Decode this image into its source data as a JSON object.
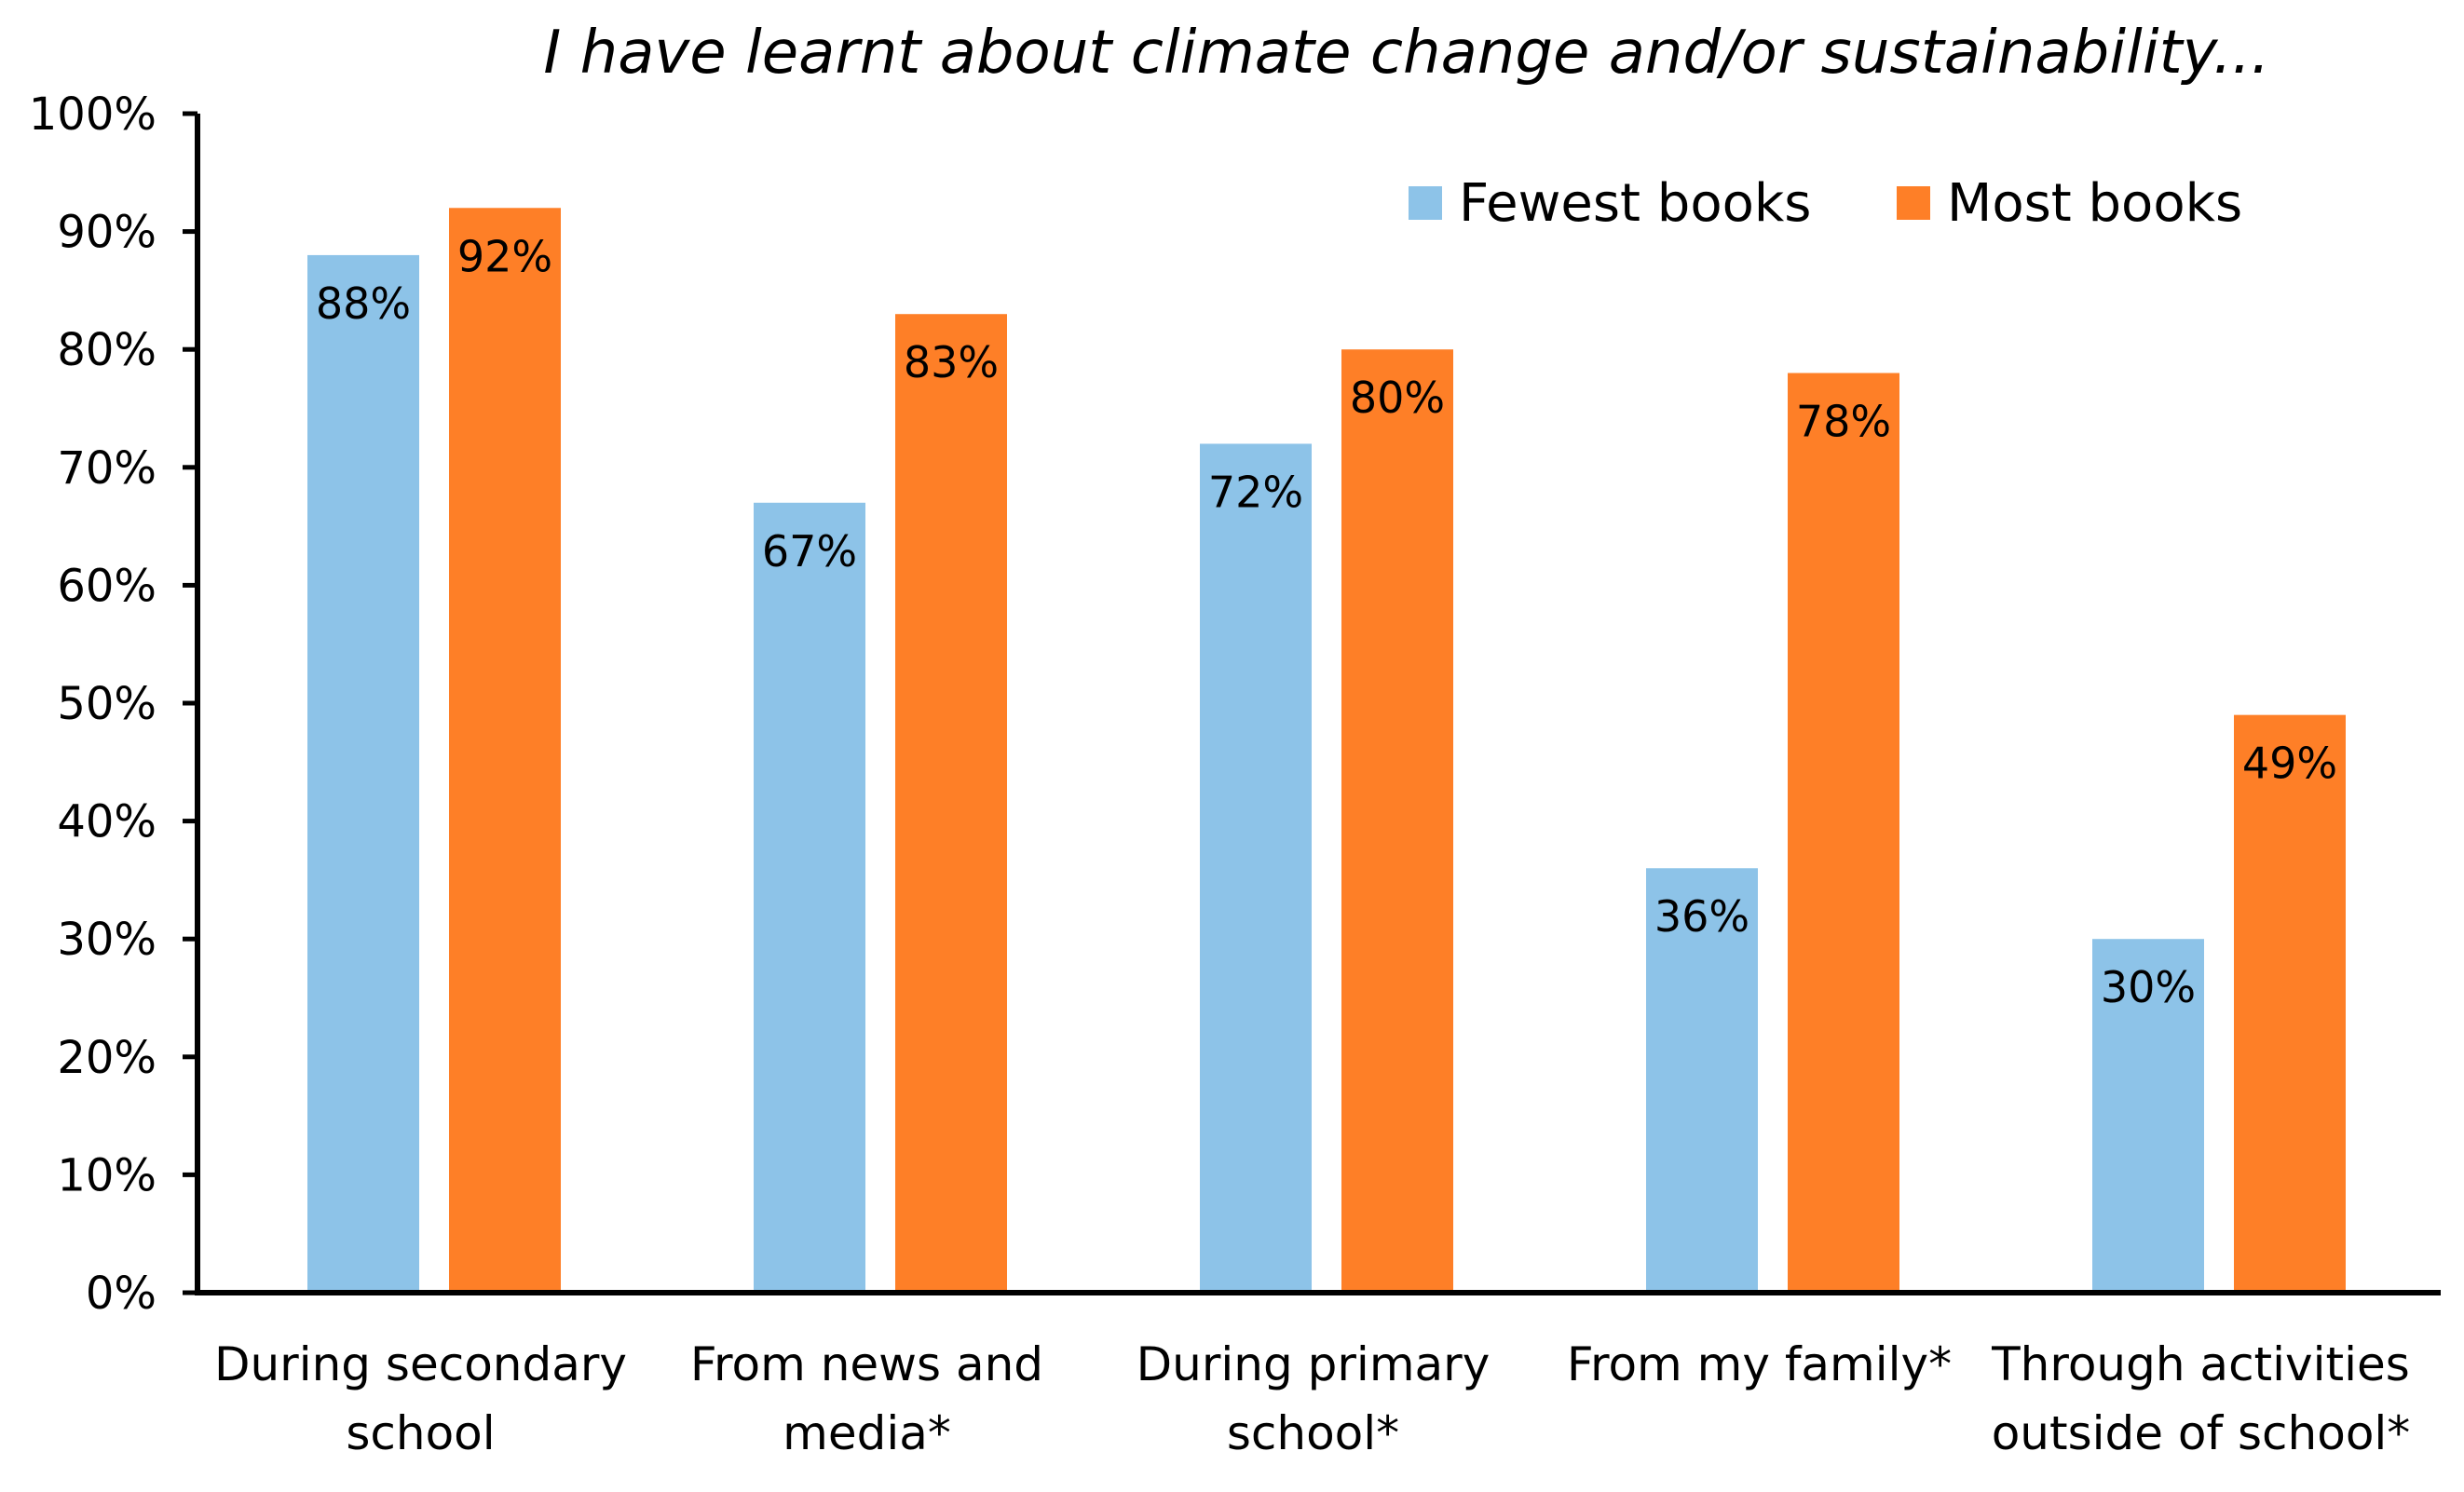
{
  "chart_data": {
    "type": "bar",
    "title": "I have learnt about climate change and/or sustainability...",
    "xlabel": "",
    "ylabel": "",
    "ylim": [
      0,
      100
    ],
    "yticks": [
      "0%",
      "10%",
      "20%",
      "30%",
      "40%",
      "50%",
      "60%",
      "70%",
      "80%",
      "90%",
      "100%"
    ],
    "grid": false,
    "legend_position": "top-right",
    "categories": [
      [
        "During secondary",
        "school"
      ],
      [
        "From news and",
        "media*"
      ],
      [
        "During primary",
        "school*"
      ],
      [
        "From my family*"
      ],
      [
        "Through activities",
        "outside of school*"
      ]
    ],
    "series": [
      {
        "name": "Fewest books",
        "color": "#8DC3E8",
        "values": [
          88,
          67,
          72,
          36,
          30
        ],
        "labels": [
          "88%",
          "67%",
          "72%",
          "36%",
          "30%"
        ]
      },
      {
        "name": "Most books",
        "color": "#FE7F27",
        "values": [
          92,
          83,
          80,
          78,
          49
        ],
        "labels": [
          "92%",
          "83%",
          "80%",
          "78%",
          "49%"
        ]
      }
    ]
  }
}
